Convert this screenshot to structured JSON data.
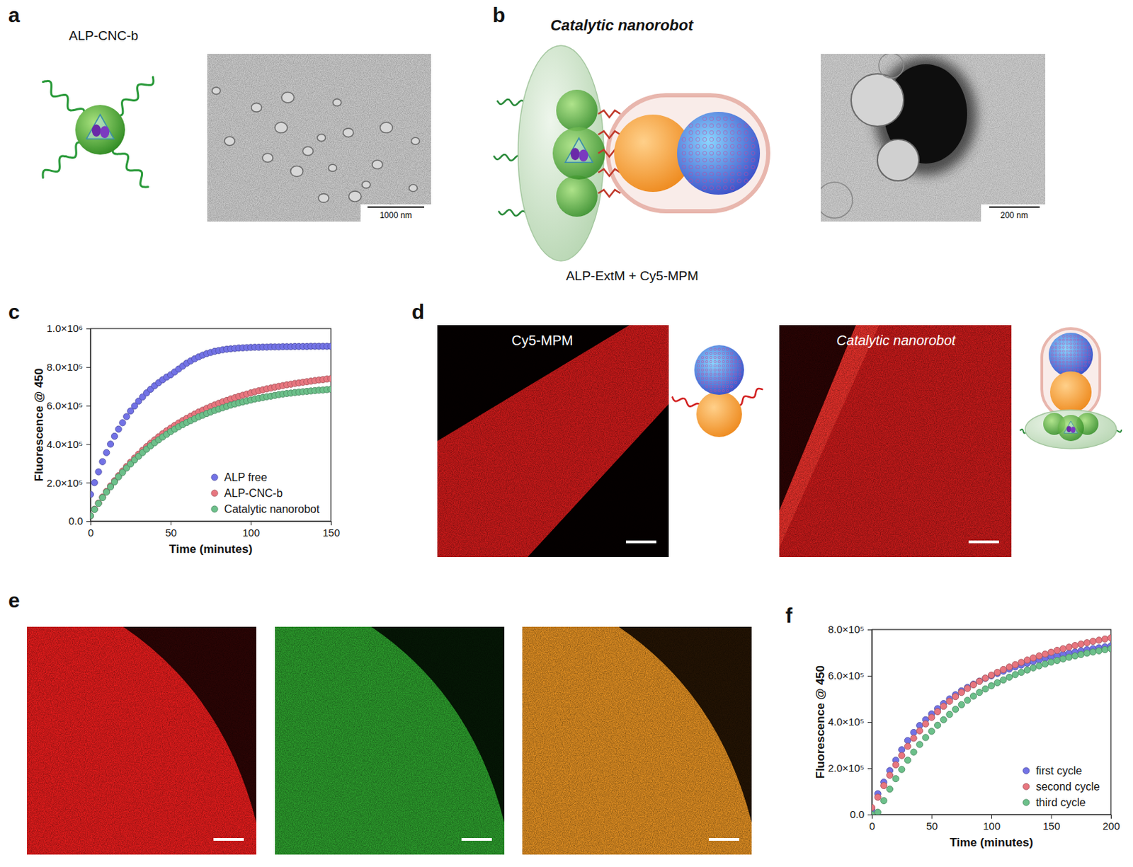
{
  "figure": {
    "panels": {
      "a": {
        "letter": "a",
        "label": "ALP-CNC-b",
        "scale_bar": "1000 nm"
      },
      "b": {
        "letter": "b",
        "title": "Catalytic nanorobot",
        "caption": "ALP-ExtM + Cy5-MPM",
        "scale_bar": "200 nm"
      },
      "c": {
        "letter": "c"
      },
      "d": {
        "letter": "d",
        "labels": [
          "Cy5-MPM",
          "Catalytic nanorobot"
        ]
      },
      "e": {
        "letter": "e"
      },
      "f": {
        "letter": "f"
      }
    }
  },
  "chart_data": [
    {
      "type": "scatter",
      "marker": "circle",
      "legend": "lower right",
      "xlabel": "Time (minutes)",
      "ylabel": "Fluorescence @ 450",
      "xlim": [
        0,
        150
      ],
      "xticks": [
        0,
        50,
        100,
        150
      ],
      "ylim": [
        0,
        1000000
      ],
      "yticks": [
        {
          "value": 0,
          "label": "0.0"
        },
        {
          "value": 200000,
          "label": "2.0×10⁵"
        },
        {
          "value": 400000,
          "label": "4.0×10⁵"
        },
        {
          "value": 600000,
          "label": "6.0×10⁵"
        },
        {
          "value": 800000,
          "label": "8.0×10⁵"
        },
        {
          "value": 1000000,
          "label": "1.0×10⁶"
        }
      ],
      "x": [
        0,
        2.5,
        5,
        7.5,
        10,
        12.5,
        15,
        17.5,
        20,
        22.5,
        25,
        27.5,
        30,
        32.5,
        35,
        37.5,
        40,
        42.5,
        45,
        47.5,
        50,
        52.5,
        55,
        57.5,
        60,
        62.5,
        65,
        67.5,
        70,
        72.5,
        75,
        77.5,
        80,
        82.5,
        85,
        87.5,
        90,
        92.5,
        95,
        97.5,
        100,
        102.5,
        105,
        107.5,
        110,
        112.5,
        115,
        117.5,
        120,
        122.5,
        125,
        127.5,
        130,
        132.5,
        135,
        137.5,
        140,
        142.5,
        145,
        147.5,
        150
      ],
      "series": [
        {
          "name": "ALP free",
          "color": "#7272e6",
          "values": [
            139000,
            200000,
            256000,
            309000,
            356000,
            400000,
            441000,
            478000,
            511000,
            543000,
            572000,
            598000,
            623000,
            645000,
            666000,
            685000,
            703000,
            719000,
            734000,
            748000,
            760000,
            775000,
            790000,
            805000,
            820000,
            832000,
            843000,
            853000,
            862000,
            870000,
            876000,
            882000,
            886000,
            890000,
            893000,
            895000,
            897000,
            899000,
            900000,
            901000,
            902000,
            903000,
            903000,
            904000,
            904000,
            905000,
            905000,
            905000,
            906000,
            906000,
            906000,
            907000,
            907000,
            907000,
            907000,
            908000,
            908000,
            908000,
            908000,
            908000,
            908000
          ]
        },
        {
          "name": "ALP-CNC-b",
          "color": "#e8767f",
          "values": [
            28000,
            62000,
            94000,
            125000,
            155000,
            183000,
            210000,
            236000,
            260000,
            284000,
            306000,
            328000,
            348000,
            368000,
            387000,
            405000,
            422000,
            438000,
            454000,
            469000,
            483000,
            497000,
            510000,
            522000,
            534000,
            545000,
            556000,
            567000,
            576000,
            586000,
            595000,
            604000,
            612000,
            620000,
            627000,
            635000,
            641000,
            648000,
            654000,
            660000,
            666000,
            672000,
            677000,
            682000,
            687000,
            691000,
            696000,
            700000,
            704000,
            708000,
            711000,
            715000,
            718000,
            721000,
            724000,
            727000,
            730000,
            733000,
            735000,
            738000,
            740000
          ]
        },
        {
          "name": "Catalytic nanorobot",
          "color": "#6cc08a",
          "values": [
            28000,
            61000,
            92000,
            122000,
            151000,
            178000,
            204000,
            230000,
            253000,
            276000,
            297000,
            318000,
            337000,
            356000,
            374000,
            391000,
            407000,
            422000,
            437000,
            451000,
            465000,
            478000,
            490000,
            501000,
            512000,
            522000,
            532000,
            542000,
            550000,
            559000,
            567000,
            575000,
            582000,
            589000,
            596000,
            603000,
            608000,
            614000,
            619000,
            624000,
            629000,
            634000,
            638000,
            642000,
            646000,
            649000,
            653000,
            657000,
            660000,
            663000,
            665000,
            668000,
            670000,
            672000,
            674000,
            676000,
            678000,
            680000,
            681000,
            683000,
            685000
          ]
        }
      ]
    },
    {
      "type": "scatter",
      "marker": "circle",
      "legend": "lower right",
      "xlabel": "Time (minutes)",
      "ylabel": "Fluorescence @ 450",
      "xlim": [
        0,
        200
      ],
      "xticks": [
        0,
        50,
        100,
        150,
        200
      ],
      "ylim": [
        0,
        800000
      ],
      "yticks": [
        {
          "value": 0,
          "label": "0.0"
        },
        {
          "value": 200000,
          "label": "2.0×10⁵"
        },
        {
          "value": 400000,
          "label": "4.0×10⁵"
        },
        {
          "value": 600000,
          "label": "6.0×10⁵"
        },
        {
          "value": 800000,
          "label": "8.0×10⁵"
        }
      ],
      "x": [
        0,
        5,
        10,
        15,
        20,
        25,
        30,
        35,
        40,
        45,
        50,
        55,
        60,
        65,
        70,
        75,
        80,
        85,
        90,
        95,
        100,
        105,
        110,
        115,
        120,
        125,
        130,
        135,
        140,
        145,
        150,
        155,
        160,
        165,
        170,
        175,
        180,
        185,
        190,
        195,
        200
      ],
      "series": [
        {
          "name": "first cycle",
          "color": "#7272e6",
          "values": [
            20000,
            90000,
            140000,
            190000,
            235000,
            280000,
            320000,
            355000,
            385000,
            410000,
            435000,
            458000,
            480000,
            500000,
            518000,
            535000,
            550000,
            564000,
            577000,
            589000,
            600000,
            610000,
            620000,
            629000,
            638000,
            646000,
            654000,
            661000,
            668000,
            675000,
            681000,
            687000,
            693000,
            698000,
            703000,
            708000,
            713000,
            717000,
            721000,
            725000,
            729000
          ]
        },
        {
          "name": "second cycle",
          "color": "#e8767f",
          "values": [
            30000,
            75000,
            125000,
            170000,
            215000,
            255000,
            295000,
            330000,
            362000,
            392000,
            420000,
            445000,
            468000,
            490000,
            510000,
            528000,
            545000,
            561000,
            576000,
            590000,
            603000,
            615000,
            627000,
            638000,
            648000,
            658000,
            668000,
            677000,
            686000,
            694000,
            702000,
            710000,
            717000,
            724000,
            731000,
            737000,
            743000,
            749000,
            754000,
            759000,
            764000
          ]
        },
        {
          "name": "third cycle",
          "color": "#6cc08a",
          "values": [
            0,
            10000,
            60000,
            110000,
            155000,
            195000,
            235000,
            270000,
            303000,
            333000,
            360000,
            386000,
            410000,
            433000,
            455000,
            475000,
            494000,
            512000,
            528000,
            543000,
            557000,
            570000,
            582000,
            594000,
            605000,
            615000,
            625000,
            634000,
            643000,
            651000,
            659000,
            666000,
            673000,
            680000,
            686000,
            692000,
            698000,
            703000,
            708000,
            713000,
            717000
          ]
        }
      ]
    }
  ]
}
